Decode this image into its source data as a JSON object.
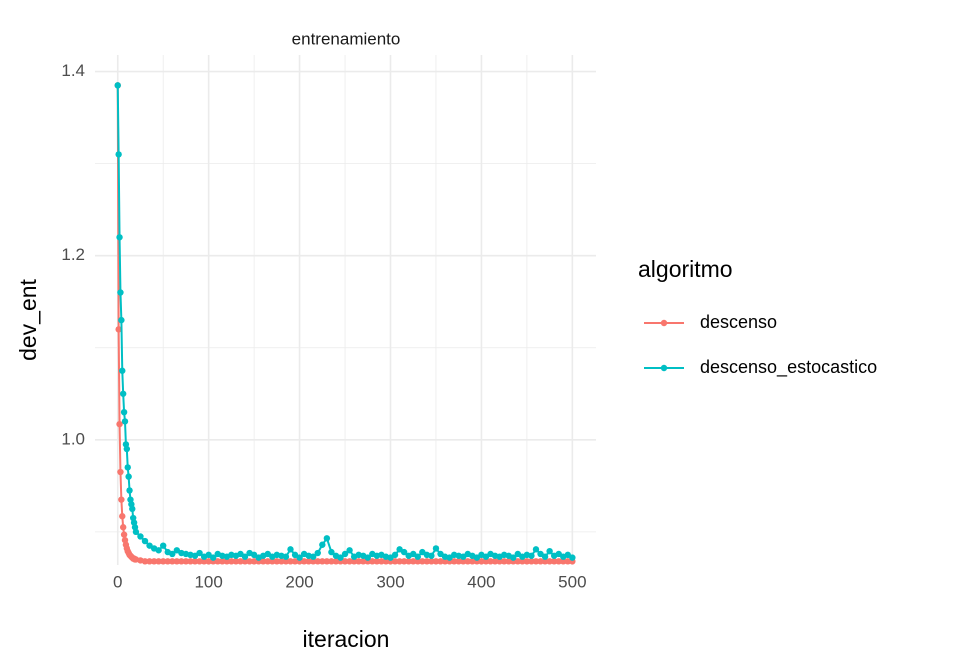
{
  "chart_data": {
    "type": "line",
    "title": "entrenamiento",
    "xlabel": "iteracion",
    "ylabel": "dev_ent",
    "legend_title": "algoritmo",
    "legend": "right",
    "grid": true,
    "markers": true,
    "xlim": [
      -25,
      526
    ],
    "ylim": [
      0.864,
      1.418
    ],
    "xticks": [
      0,
      100,
      200,
      300,
      400,
      500
    ],
    "xminor": [
      50,
      150,
      250,
      350,
      450
    ],
    "yticks": [
      {
        "value": 1,
        "label": "1.0"
      },
      1.2,
      1.4
    ],
    "yminor": [
      0.9,
      1.1,
      1.3
    ],
    "x": [
      0,
      1,
      2,
      3,
      4,
      5,
      6,
      7,
      8,
      9,
      10,
      11,
      12,
      13,
      14,
      15,
      16,
      17,
      18,
      19,
      20,
      25,
      30,
      35,
      40,
      45,
      50,
      55,
      60,
      65,
      70,
      75,
      80,
      85,
      90,
      95,
      100,
      105,
      110,
      115,
      120,
      125,
      130,
      135,
      140,
      145,
      150,
      155,
      160,
      165,
      170,
      175,
      180,
      185,
      190,
      195,
      200,
      205,
      210,
      215,
      220,
      225,
      230,
      235,
      240,
      245,
      250,
      255,
      260,
      265,
      270,
      275,
      280,
      285,
      290,
      295,
      300,
      305,
      310,
      315,
      320,
      325,
      330,
      335,
      340,
      345,
      350,
      355,
      360,
      365,
      370,
      375,
      380,
      385,
      390,
      395,
      400,
      405,
      410,
      415,
      420,
      425,
      430,
      435,
      440,
      445,
      450,
      455,
      460,
      465,
      470,
      475,
      480,
      485,
      490,
      495,
      500
    ],
    "series": [
      {
        "name": "descenso",
        "color": "#F8766D",
        "values": [
          1.385,
          1.12,
          1.017,
          0.965,
          0.935,
          0.917,
          0.905,
          0.897,
          0.891,
          0.886,
          0.882,
          0.879,
          0.877,
          0.875,
          0.874,
          0.873,
          0.872,
          0.871,
          0.871,
          0.87,
          0.87,
          0.869,
          0.868,
          0.868,
          0.868,
          0.868,
          0.868,
          0.868,
          0.868,
          0.868,
          0.868,
          0.868,
          0.868,
          0.868,
          0.868,
          0.868,
          0.868,
          0.868,
          0.868,
          0.868,
          0.868,
          0.868,
          0.868,
          0.868,
          0.868,
          0.868,
          0.868,
          0.868,
          0.868,
          0.868,
          0.868,
          0.868,
          0.868,
          0.868,
          0.868,
          0.868,
          0.868,
          0.868,
          0.868,
          0.868,
          0.868,
          0.868,
          0.868,
          0.868,
          0.868,
          0.868,
          0.868,
          0.868,
          0.868,
          0.868,
          0.868,
          0.868,
          0.868,
          0.868,
          0.868,
          0.868,
          0.868,
          0.868,
          0.868,
          0.868,
          0.868,
          0.868,
          0.868,
          0.868,
          0.868,
          0.868,
          0.868,
          0.868,
          0.868,
          0.868,
          0.868,
          0.868,
          0.868,
          0.868,
          0.868,
          0.868,
          0.868,
          0.868,
          0.868,
          0.868,
          0.868,
          0.868,
          0.868,
          0.868,
          0.868,
          0.868,
          0.868,
          0.868,
          0.868,
          0.868,
          0.868,
          0.868,
          0.868,
          0.868,
          0.868,
          0.868,
          0.868
        ]
      },
      {
        "name": "descenso_estocastico",
        "color": "#00BFC4",
        "values": [
          1.385,
          1.31,
          1.22,
          1.16,
          1.13,
          1.075,
          1.05,
          1.03,
          1.02,
          0.995,
          0.99,
          0.97,
          0.96,
          0.945,
          0.935,
          0.93,
          0.925,
          0.915,
          0.91,
          0.905,
          0.9,
          0.895,
          0.89,
          0.885,
          0.882,
          0.88,
          0.885,
          0.878,
          0.876,
          0.88,
          0.877,
          0.876,
          0.875,
          0.874,
          0.877,
          0.873,
          0.875,
          0.872,
          0.876,
          0.874,
          0.873,
          0.875,
          0.874,
          0.876,
          0.873,
          0.877,
          0.875,
          0.872,
          0.874,
          0.876,
          0.873,
          0.875,
          0.874,
          0.873,
          0.881,
          0.875,
          0.872,
          0.876,
          0.874,
          0.873,
          0.877,
          0.886,
          0.893,
          0.878,
          0.874,
          0.872,
          0.876,
          0.88,
          0.873,
          0.875,
          0.874,
          0.872,
          0.876,
          0.874,
          0.875,
          0.873,
          0.872,
          0.875,
          0.881,
          0.878,
          0.874,
          0.876,
          0.873,
          0.878,
          0.875,
          0.874,
          0.882,
          0.876,
          0.873,
          0.872,
          0.875,
          0.874,
          0.873,
          0.876,
          0.874,
          0.872,
          0.875,
          0.873,
          0.876,
          0.874,
          0.873,
          0.875,
          0.874,
          0.872,
          0.876,
          0.873,
          0.875,
          0.874,
          0.881,
          0.876,
          0.873,
          0.879,
          0.874,
          0.876,
          0.873,
          0.875,
          0.872
        ]
      }
    ]
  }
}
